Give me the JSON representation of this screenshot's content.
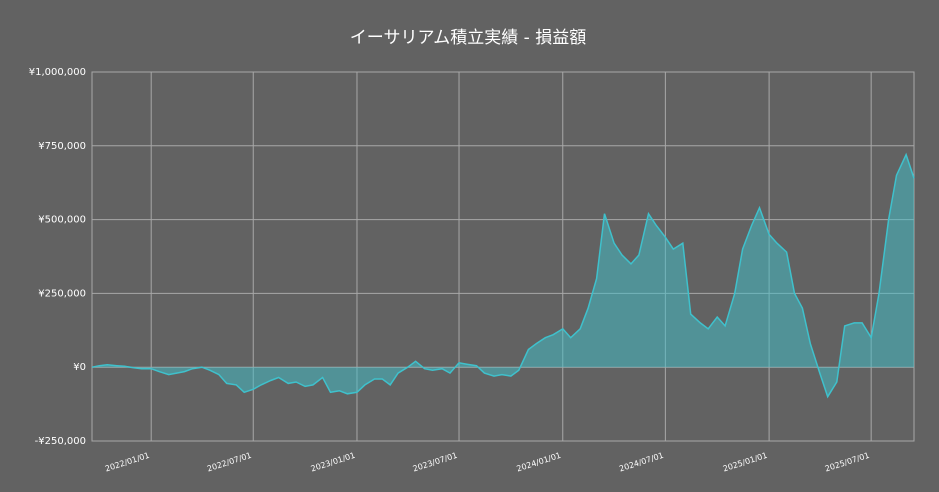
{
  "chart_data": {
    "type": "area",
    "title": "イーサリアム積立実績 - 損益額",
    "x": [
      "2021/09/18",
      "2021/10/01",
      "2021/10/15",
      "2021/11/01",
      "2021/11/15",
      "2021/12/01",
      "2021/12/15",
      "2022/01/01",
      "2022/01/15",
      "2022/02/01",
      "2022/02/15",
      "2022/03/01",
      "2022/03/15",
      "2022/04/01",
      "2022/04/15",
      "2022/05/01",
      "2022/05/15",
      "2022/06/01",
      "2022/06/15",
      "2022/07/01",
      "2022/07/15",
      "2022/08/01",
      "2022/08/15",
      "2022/09/01",
      "2022/09/15",
      "2022/10/01",
      "2022/10/15",
      "2022/11/01",
      "2022/11/15",
      "2022/12/01",
      "2022/12/15",
      "2023/01/01",
      "2023/01/15",
      "2023/02/01",
      "2023/02/15",
      "2023/03/01",
      "2023/03/15",
      "2023/04/01",
      "2023/04/15",
      "2023/05/01",
      "2023/05/15",
      "2023/06/01",
      "2023/06/15",
      "2023/07/01",
      "2023/07/15",
      "2023/08/01",
      "2023/08/15",
      "2023/09/01",
      "2023/09/15",
      "2023/10/01",
      "2023/10/15",
      "2023/11/01",
      "2023/11/15",
      "2023/12/01",
      "2023/12/15",
      "2024/01/01",
      "2024/01/15",
      "2024/02/01",
      "2024/02/15",
      "2024/03/01",
      "2024/03/15",
      "2024/04/01",
      "2024/04/15",
      "2024/05/01",
      "2024/05/15",
      "2024/06/01",
      "2024/06/15",
      "2024/07/01",
      "2024/07/15",
      "2024/08/01",
      "2024/08/15",
      "2024/09/01",
      "2024/09/15",
      "2024/10/01",
      "2024/10/15",
      "2024/11/01",
      "2024/11/15",
      "2024/12/01",
      "2024/12/15",
      "2025/01/01",
      "2025/01/15",
      "2025/02/01",
      "2025/02/15",
      "2025/03/01",
      "2025/03/15",
      "2025/04/01",
      "2025/04/15",
      "2025/05/01",
      "2025/05/15",
      "2025/06/01",
      "2025/06/15",
      "2025/07/01",
      "2025/07/15",
      "2025/08/01",
      "2025/08/15",
      "2025/09/01",
      "2025/09/15"
    ],
    "series": [
      {
        "name": "損益額",
        "color": "#3fc1cc",
        "values": [
          0,
          5000,
          8000,
          5000,
          3000,
          -2000,
          -5000,
          -5000,
          -15000,
          -25000,
          -20000,
          -15000,
          -5000,
          0,
          -10000,
          -25000,
          -55000,
          -60000,
          -85000,
          -75000,
          -60000,
          -45000,
          -35000,
          -55000,
          -50000,
          -65000,
          -60000,
          -35000,
          -85000,
          -80000,
          -90000,
          -85000,
          -60000,
          -40000,
          -40000,
          -60000,
          -20000,
          0,
          20000,
          -5000,
          -10000,
          -5000,
          -20000,
          15000,
          10000,
          5000,
          -20000,
          -30000,
          -25000,
          -30000,
          -10000,
          60000,
          80000,
          100000,
          110000,
          130000,
          100000,
          130000,
          200000,
          300000,
          520000,
          420000,
          380000,
          350000,
          380000,
          520000,
          480000,
          440000,
          400000,
          420000,
          180000,
          150000,
          130000,
          170000,
          140000,
          250000,
          400000,
          480000,
          540000,
          450000,
          420000,
          390000,
          250000,
          200000,
          80000,
          -20000,
          -100000,
          -50000,
          140000,
          150000,
          150000,
          100000,
          250000,
          500000,
          650000,
          720000,
          640000
        ]
      }
    ],
    "xlim": [
      "2021/09/18",
      "2025/09/15"
    ],
    "xticks": [
      "2022/01/01",
      "2022/07/01",
      "2023/01/01",
      "2023/07/01",
      "2024/01/01",
      "2024/07/01",
      "2025/01/01",
      "2025/07/01"
    ],
    "ylim": [
      -250000,
      1000000
    ],
    "yticks": [
      {
        "value": -250000,
        "label": "-¥250,000"
      },
      {
        "value": 0,
        "label": "¥0"
      },
      {
        "value": 250000,
        "label": "¥250,000"
      },
      {
        "value": 500000,
        "label": "¥500,000"
      },
      {
        "value": 750000,
        "label": "¥750,000"
      },
      {
        "value": 1000000,
        "label": "¥1,000,000"
      }
    ],
    "grid": true
  }
}
